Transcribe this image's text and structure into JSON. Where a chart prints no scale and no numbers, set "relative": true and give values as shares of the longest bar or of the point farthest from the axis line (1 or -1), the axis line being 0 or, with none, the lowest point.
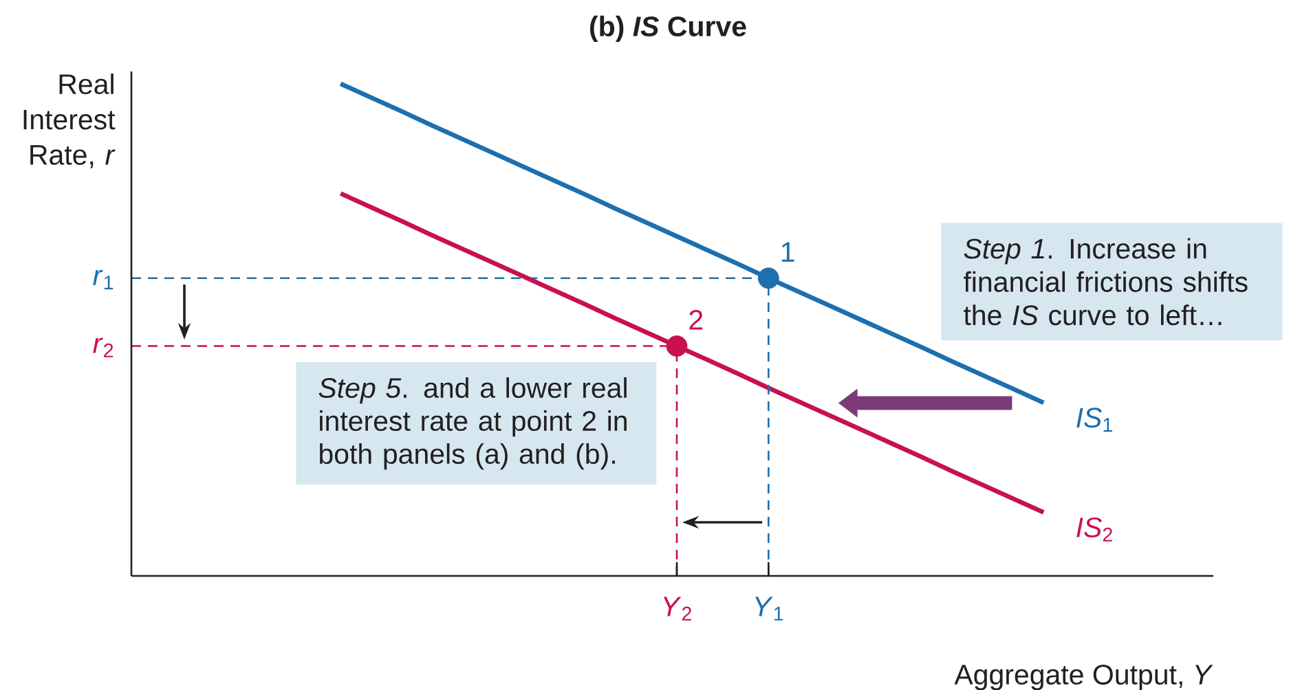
{
  "chart_data": {
    "type": "line",
    "title": "(b) *IS* Curve",
    "xlabel": "Aggregate Output, *Y*",
    "relative": true,
    "categories": [
      null,
      null,
      null,
      null,
      null,
      null,
      null,
      null,
      null,
      null,
      null,
      "*Y*$_{2}$",
      null,
      null,
      "*Y*$_{1}$",
      null,
      null,
      null,
      null,
      null,
      null,
      null,
      null,
      null
    ],
    "series": [
      {
        "name": "*IS*$_{1}$",
        "color": "#1d6fae",
        "values": [
          1.0,
          0.972,
          0.944,
          0.915,
          0.887,
          0.859,
          0.831,
          0.803,
          0.775,
          0.746,
          0.718,
          0.69,
          0.662,
          0.634,
          0.605,
          0.577,
          0.549,
          0.521,
          0.493,
          0.465,
          0.436,
          0.408,
          0.38,
          0.352
        ]
      },
      {
        "name": "*IS*$_{2}$",
        "color": "#c8114e",
        "values": [
          0.777,
          0.749,
          0.721,
          0.692,
          0.664,
          0.636,
          0.608,
          0.58,
          0.552,
          0.523,
          0.495,
          0.467,
          0.439,
          0.411,
          0.382,
          0.354,
          0.326,
          0.298,
          0.27,
          0.242,
          0.213,
          0.185,
          0.157,
          0.129
        ]
      },
      {
        "name": "1",
        "type": "lollipop",
        "marker": "circle",
        "line_style": "dashed",
        "color": "#1d6fae",
        "values": [
          null,
          null,
          null,
          null,
          null,
          null,
          null,
          null,
          null,
          null,
          null,
          null,
          null,
          null,
          0.605,
          null,
          null,
          null,
          null,
          null,
          null,
          null,
          null,
          null
        ]
      },
      {
        "name": "2",
        "type": "lollipop",
        "marker": "circle",
        "line_style": "dashed",
        "color": "#c8114e",
        "values": [
          null,
          null,
          null,
          null,
          null,
          null,
          null,
          null,
          null,
          null,
          null,
          0.467,
          null,
          null,
          null,
          null,
          null,
          null,
          null,
          null,
          null,
          null,
          null,
          null
        ]
      }
    ],
    "ref_lines": [
      {
        "axis": "y",
        "value": 0.605,
        "label": "*r*$_{1}$",
        "color": "#1d6fae",
        "line_style": "dashed"
      },
      {
        "axis": "y",
        "value": 0.467,
        "label": "*r*$_{2}$",
        "color": "#c8114e",
        "line_style": "dashed"
      }
    ],
    "annotations": [
      "Real Interest Rate, *r*",
      "*Step 1*. Increase in financial frictions shifts the *IS* curve to left…",
      "*Step 5*. and a lower real interest rate at point 2 in both panels (a) and (b)."
    ]
  }
}
